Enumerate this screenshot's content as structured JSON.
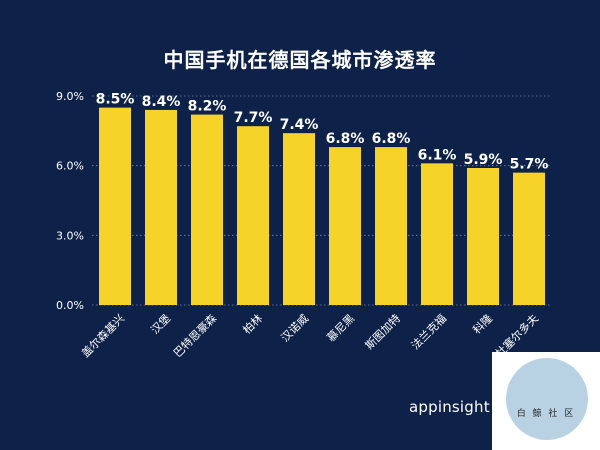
{
  "chart_data": {
    "type": "bar",
    "title": "中国手机在德国各城市渗透率",
    "categories": [
      "盖尔森基兴",
      "汉堡",
      "巴特恩豪森",
      "柏林",
      "汉诺威",
      "慕尼黑",
      "斯图加特",
      "法兰克福",
      "科隆",
      "杜塞尔多夫"
    ],
    "values": [
      8.5,
      8.4,
      8.2,
      7.7,
      7.4,
      6.8,
      6.8,
      6.1,
      5.9,
      5.7
    ],
    "data_labels": [
      "8.5%",
      "8.4%",
      "8.2%",
      "7.7%",
      "7.4%",
      "6.8%",
      "6.8%",
      "6.1%",
      "5.9%",
      "5.7%"
    ],
    "ylim": [
      0,
      9
    ],
    "yticks": [
      0,
      3,
      6,
      9
    ],
    "ytick_labels": [
      "0.0%",
      "3.0%",
      "6.0%",
      "9.0%"
    ],
    "grid": "horizontal dotted",
    "bar_color": "#f5d328",
    "background_color": "#0e2148"
  },
  "brand": "appinsight",
  "watermark_text": "白 鲸 社 区"
}
